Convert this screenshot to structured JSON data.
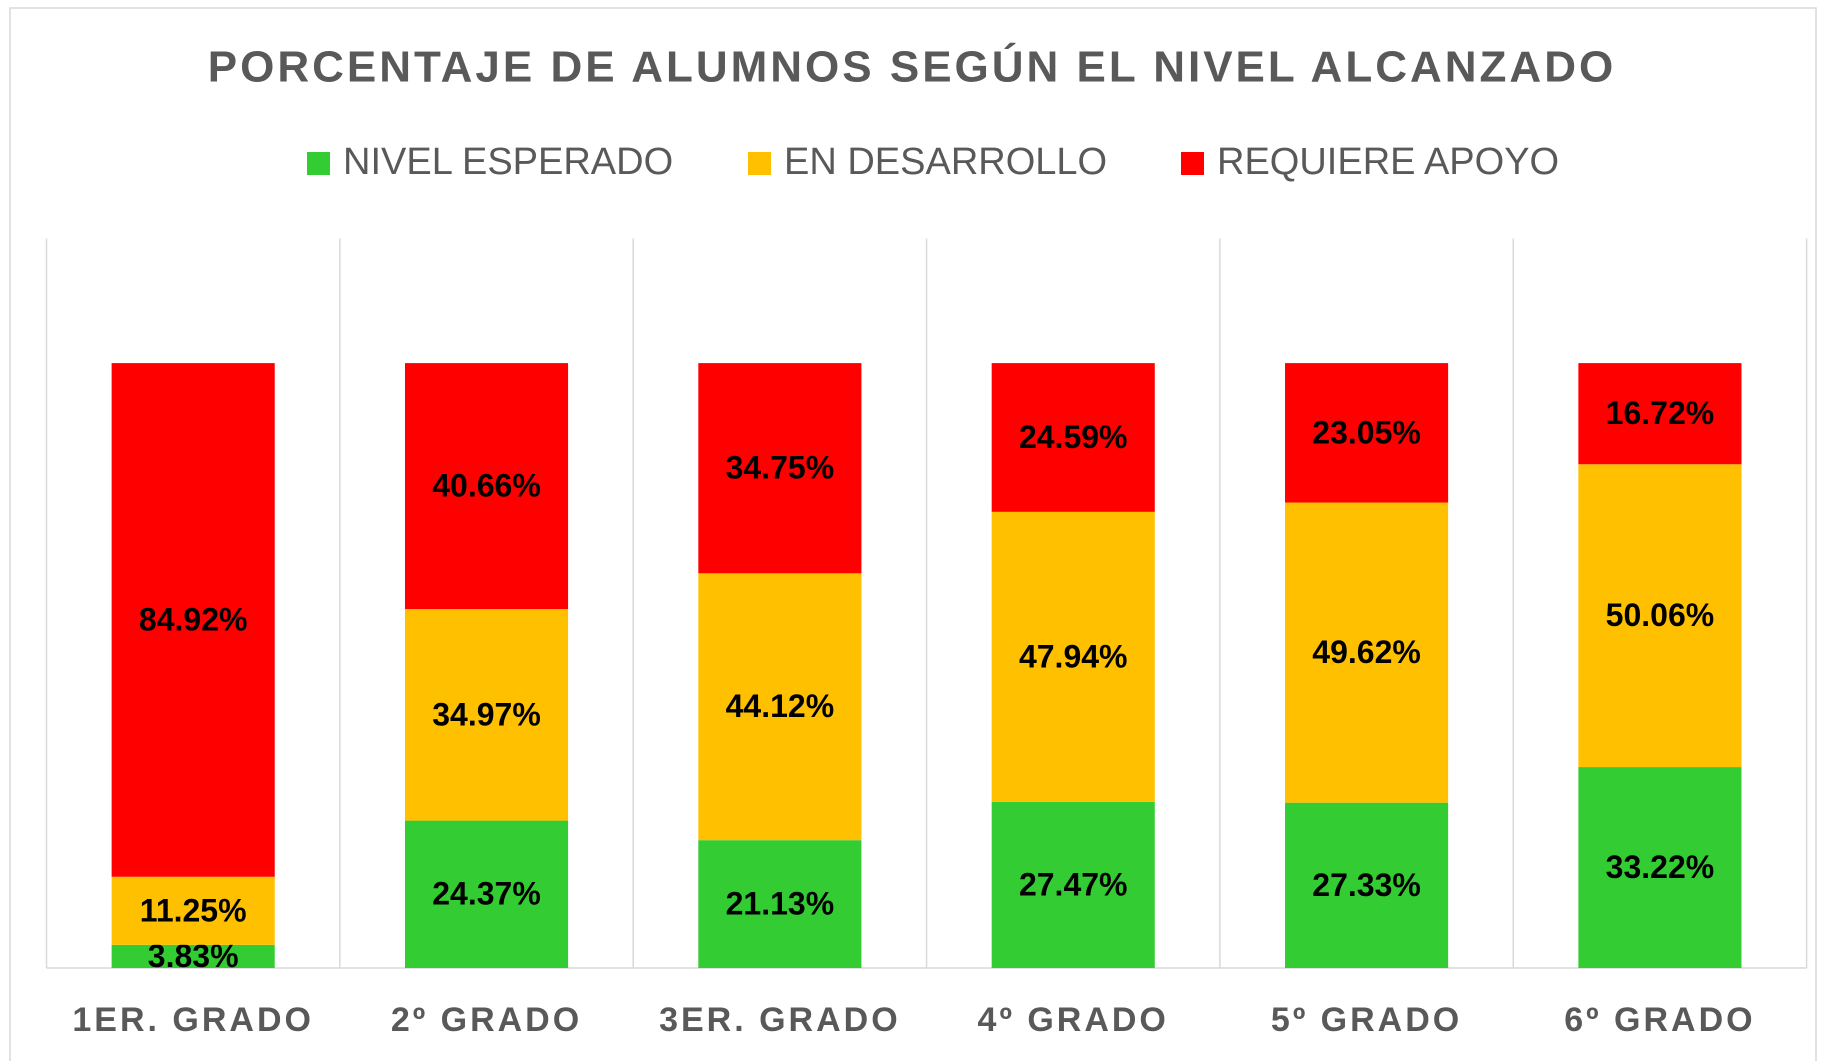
{
  "chart_data": {
    "type": "stacked_bar",
    "title": "PORCENTAJE DE ALUMNOS SEGÚN EL NIVEL ALCANZADO",
    "categories": [
      "1ER. GRADO",
      "2º GRADO",
      "3ER. GRADO",
      "4º GRADO",
      "5º GRADO",
      "6º GRADO"
    ],
    "series": [
      {
        "name": "NIVEL ESPERADO",
        "color": "#33cc33",
        "values": [
          3.83,
          24.37,
          21.13,
          27.47,
          27.33,
          33.22
        ],
        "value_labels": [
          "3.83%",
          "24.37%",
          "21.13%",
          "27.47%",
          "27.33%",
          "33.22%"
        ]
      },
      {
        "name": "EN DESARROLLO",
        "color": "#ffc000",
        "values": [
          11.25,
          34.97,
          44.12,
          47.94,
          49.62,
          50.06
        ],
        "value_labels": [
          "11.25%",
          "34.97%",
          "44.12%",
          "47.94%",
          "49.62%",
          "50.06%"
        ]
      },
      {
        "name": "REQUIERE APOYO",
        "color": "#ff0000",
        "values": [
          84.92,
          40.66,
          34.75,
          24.59,
          23.05,
          16.72
        ],
        "value_labels": [
          "84.92%",
          "40.66%",
          "34.75%",
          "24.59%",
          "23.05%",
          "16.72%"
        ]
      }
    ],
    "ylim": [
      0,
      120.6
    ],
    "legend": "top"
  }
}
